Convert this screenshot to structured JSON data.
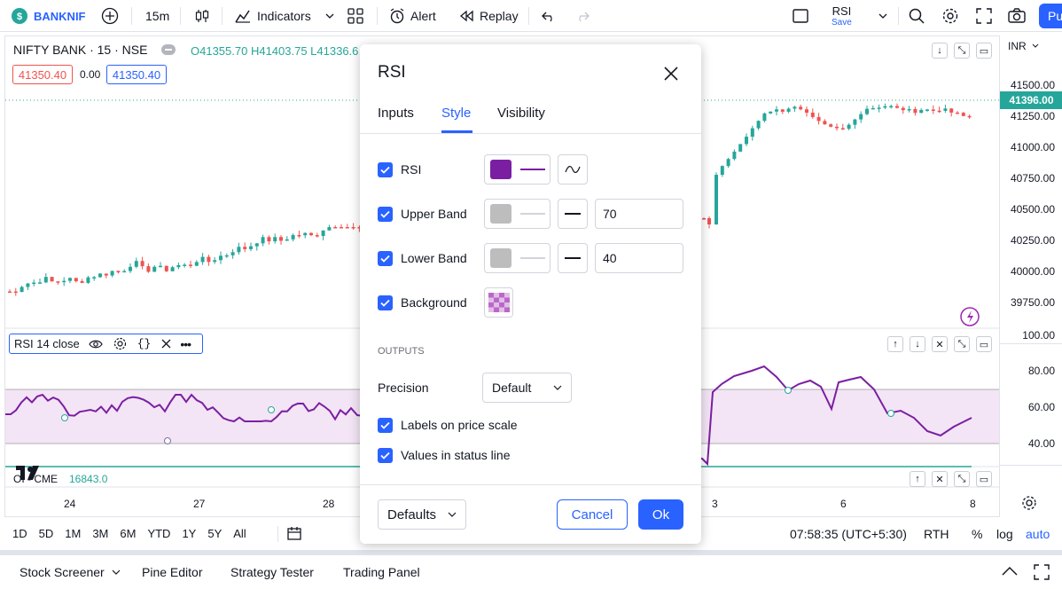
{
  "topbar": {
    "symbol": "BANKNIF",
    "interval": "15m",
    "indicators": "Indicators",
    "alert": "Alert",
    "replay": "Replay",
    "layout_name": "RSI",
    "layout_save": "Save",
    "publish": "Pu"
  },
  "legend": {
    "title": "NIFTY BANK · 15 · NSE",
    "ohlc": "O41355.70  H41403.75  L41336.6",
    "bid": "41350.40",
    "spread": "0.00",
    "ask": "41350.40"
  },
  "price_scale": {
    "currency": "INR",
    "current": "41396.00",
    "labels": [
      "41500.00",
      "41250.00",
      "41000.00",
      "40750.00",
      "40500.00",
      "40250.00",
      "40000.00",
      "39750.00"
    ]
  },
  "rsi_scale": {
    "labels": [
      "100.00",
      "80.00",
      "60.00",
      "40.00"
    ]
  },
  "rsi_legend": {
    "title": "RSI 14 close"
  },
  "oi_legend": {
    "name": "OI - CME",
    "value": "16843.0"
  },
  "x_axis": {
    "labels": [
      "24",
      "27",
      "28",
      "3",
      "6",
      "8"
    ]
  },
  "dialog": {
    "title": "RSI",
    "tabs": [
      "Inputs",
      "Style",
      "Visibility"
    ],
    "active_tab": "Style",
    "rows": {
      "rsi": {
        "label": "RSI",
        "color": "#7b1fa2"
      },
      "upper": {
        "label": "Upper Band",
        "value": "70",
        "color": "#bdbdbd"
      },
      "lower": {
        "label": "Lower Band",
        "value": "40",
        "color": "#bdbdbd"
      },
      "background": {
        "label": "Background"
      }
    },
    "outputs_header": "OUTPUTS",
    "precision_label": "Precision",
    "precision_value": "Default",
    "labels_on_scale": "Labels on price scale",
    "values_status": "Values in status line",
    "defaults": "Defaults",
    "cancel": "Cancel",
    "ok": "Ok"
  },
  "ranges": [
    "1D",
    "5D",
    "1M",
    "3M",
    "6M",
    "YTD",
    "1Y",
    "5Y",
    "All"
  ],
  "clock": "07:58:35 (UTC+5:30)",
  "session": "RTH",
  "scale_opts": {
    "percent": "%",
    "log": "log",
    "auto": "auto"
  },
  "footer": {
    "tabs": [
      "Stock Screener",
      "Pine Editor",
      "Strategy Tester",
      "Trading Panel"
    ]
  },
  "colors": {
    "accent": "#2962ff",
    "up": "#26a69a",
    "down": "#ef5350",
    "rsi": "#7b1fa2"
  }
}
